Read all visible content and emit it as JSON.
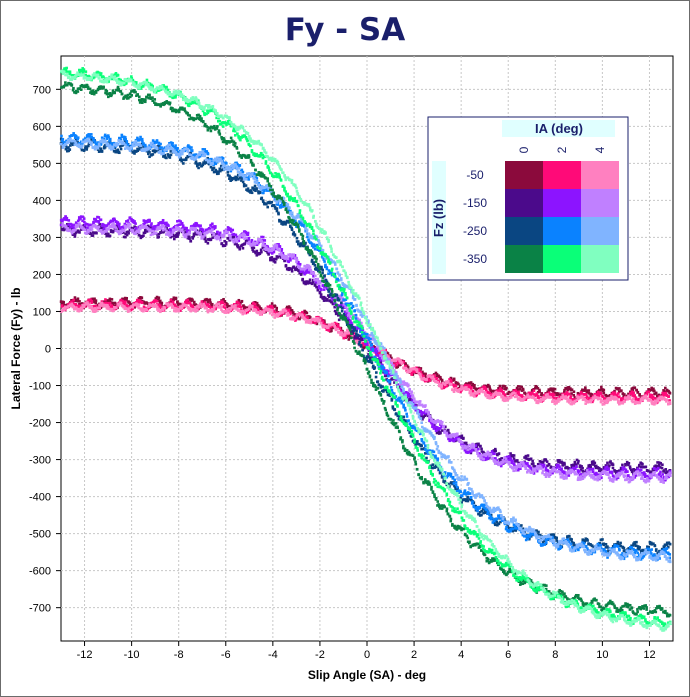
{
  "chart_data": {
    "type": "scatter",
    "title": "Fy - SA",
    "xlabel": "Slip Angle (SA) - deg",
    "ylabel": "Lateral Force (Fy) - lb",
    "xlim": [
      -13,
      13
    ],
    "ylim": [
      -790,
      790
    ],
    "xticks": [
      -12,
      -10,
      -8,
      -6,
      -4,
      -2,
      0,
      2,
      4,
      6,
      8,
      10,
      12
    ],
    "yticks": [
      700,
      600,
      500,
      400,
      300,
      200,
      100,
      0,
      -100,
      -200,
      -300,
      -400,
      -500,
      -600,
      -700
    ],
    "grid": true,
    "legend": {
      "position": "top-right",
      "column_title": "IA (deg)",
      "row_title": "Fz (lb)",
      "columns": [
        "0",
        "2",
        "4"
      ],
      "rows": [
        "-50",
        "-150",
        "-250",
        "-350"
      ],
      "colors": [
        [
          "#8b0a3c",
          "#ff0a78",
          "#ff80c0"
        ],
        [
          "#4b0a8b",
          "#8c14ff",
          "#c080ff"
        ],
        [
          "#0a4682",
          "#0a82ff",
          "#80b4ff"
        ],
        [
          "#0a8246",
          "#0aff78",
          "#80ffc0"
        ]
      ]
    },
    "series": [
      {
        "name": "Fz -50 / IA 0",
        "fz": -50,
        "ia": 0,
        "color": "#8b0a3c",
        "peak_left": 120,
        "peak_right": -125,
        "stiffness": 0.3,
        "x_shift": 0.2,
        "noise": 12
      },
      {
        "name": "Fz -50 / IA 2",
        "fz": -50,
        "ia": 2,
        "color": "#ff0a78",
        "peak_left": 132,
        "peak_right": -118,
        "stiffness": 0.3,
        "x_shift": 0.3,
        "noise": 12
      },
      {
        "name": "Fz -50 / IA 4",
        "fz": -50,
        "ia": 4,
        "color": "#ff80c0",
        "peak_left": 140,
        "peak_right": -112,
        "stiffness": 0.3,
        "x_shift": 0.4,
        "noise": 10
      },
      {
        "name": "Fz -150 / IA 0",
        "fz": -150,
        "ia": 0,
        "color": "#4b0a8b",
        "peak_left": 325,
        "peak_right": -320,
        "stiffness": 0.26,
        "x_shift": 0.0,
        "noise": 14
      },
      {
        "name": "Fz -150 / IA 2",
        "fz": -150,
        "ia": 2,
        "color": "#8c14ff",
        "peak_left": 340,
        "peak_right": -340,
        "stiffness": 0.26,
        "x_shift": 0.2,
        "noise": 14
      },
      {
        "name": "Fz -150 / IA 4",
        "fz": -150,
        "ia": 4,
        "color": "#c080ff",
        "peak_left": 350,
        "peak_right": -325,
        "stiffness": 0.26,
        "x_shift": 0.5,
        "noise": 12
      },
      {
        "name": "Fz -250 / IA 0",
        "fz": -250,
        "ia": 0,
        "color": "#0a4682",
        "peak_left": 545,
        "peak_right": -555,
        "stiffness": 0.22,
        "x_shift": -0.2,
        "noise": 14
      },
      {
        "name": "Fz -250 / IA 2",
        "fz": -250,
        "ia": 2,
        "color": "#0a82ff",
        "peak_left": 560,
        "peak_right": -570,
        "stiffness": 0.22,
        "x_shift": 0.2,
        "noise": 14
      },
      {
        "name": "Fz -250 / IA 4",
        "fz": -250,
        "ia": 4,
        "color": "#80b4ff",
        "peak_left": 570,
        "peak_right": -560,
        "stiffness": 0.21,
        "x_shift": 0.6,
        "noise": 12
      },
      {
        "name": "Fz -350 / IA 0",
        "fz": -350,
        "ia": 0,
        "color": "#0a8246",
        "peak_left": 720,
        "peak_right": -720,
        "stiffness": 0.19,
        "x_shift": -0.4,
        "noise": 12
      },
      {
        "name": "Fz -350 / IA 2",
        "fz": -350,
        "ia": 2,
        "color": "#0aff78",
        "peak_left": 755,
        "peak_right": -760,
        "stiffness": 0.18,
        "x_shift": 0.1,
        "noise": 12
      },
      {
        "name": "Fz -350 / IA 4",
        "fz": -350,
        "ia": 4,
        "color": "#80ffc0",
        "peak_left": 770,
        "peak_right": -750,
        "stiffness": 0.18,
        "x_shift": 0.6,
        "noise": 10
      }
    ]
  }
}
